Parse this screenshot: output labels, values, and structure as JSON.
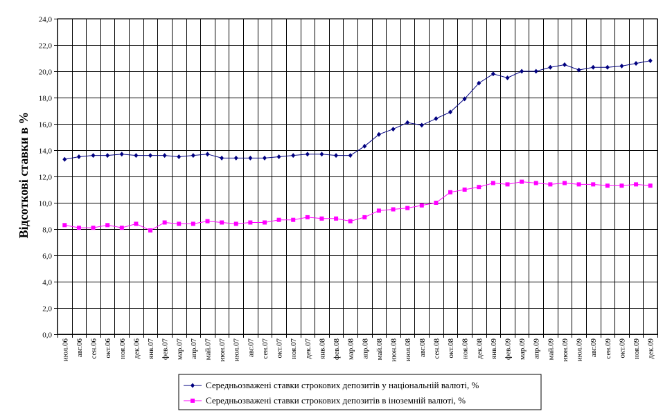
{
  "chart_data": {
    "type": "line",
    "ylabel": "Відсоткові ставки в %",
    "xlabel": "",
    "ylim": [
      0,
      24
    ],
    "ytick_step": 2,
    "grid": true,
    "legend_position": "bottom",
    "y_tick_labels": [
      "0,0",
      "2,0",
      "4,0",
      "6,0",
      "8,0",
      "10,0",
      "12,0",
      "14,0",
      "16,0",
      "18,0",
      "20,0",
      "22,0",
      "24,0"
    ],
    "categories": [
      "июл.06",
      "авг.06",
      "сен.06",
      "окт.06",
      "ноя.06",
      "дек.06",
      "янв.07",
      "фев.07",
      "мар.07",
      "апр.07",
      "май.07",
      "июн.07",
      "июл.07",
      "авг.07",
      "сен.07",
      "окт.07",
      "ноя.07",
      "дек.07",
      "янв.08",
      "фев.08",
      "мар.08",
      "апр.08",
      "май.08",
      "июн.08",
      "июл.08",
      "авг.08",
      "сен.08",
      "окт.08",
      "ноя.08",
      "дек.08",
      "янв.09",
      "фев.09",
      "мар.09",
      "апр.09",
      "май.09",
      "июн.09",
      "июл.09",
      "авг.09",
      "сен.09",
      "окт.09",
      "ноя.09",
      "дек.09"
    ],
    "series": [
      {
        "name": "Середньозважені ставки строкових депозитів у національній валюті, %",
        "color": "#000080",
        "marker": "diamond",
        "values": [
          13.3,
          13.5,
          13.6,
          13.6,
          13.7,
          13.6,
          13.6,
          13.6,
          13.5,
          13.6,
          13.7,
          13.4,
          13.4,
          13.4,
          13.4,
          13.5,
          13.6,
          13.7,
          13.7,
          13.6,
          13.6,
          14.3,
          15.2,
          15.6,
          16.1,
          15.9,
          16.4,
          16.9,
          17.9,
          19.1,
          19.8,
          19.5,
          20.0,
          20.0,
          20.3,
          20.5,
          20.1,
          20.3,
          20.3,
          20.4,
          20.6,
          20.8
        ]
      },
      {
        "name": "Середньозважені ставки строкових депозитів в іноземній валюті, %",
        "color": "#FF00FF",
        "marker": "square",
        "values": [
          8.3,
          8.1,
          8.1,
          8.3,
          8.1,
          8.4,
          7.9,
          8.5,
          8.4,
          8.4,
          8.6,
          8.5,
          8.4,
          8.5,
          8.5,
          8.7,
          8.7,
          8.9,
          8.8,
          8.8,
          8.6,
          8.9,
          9.4,
          9.5,
          9.6,
          9.8,
          10.0,
          10.8,
          11.0,
          11.2,
          11.5,
          11.4,
          11.6,
          11.5,
          11.4,
          11.5,
          11.4,
          11.4,
          11.3,
          11.3,
          11.4,
          11.3
        ]
      }
    ]
  }
}
